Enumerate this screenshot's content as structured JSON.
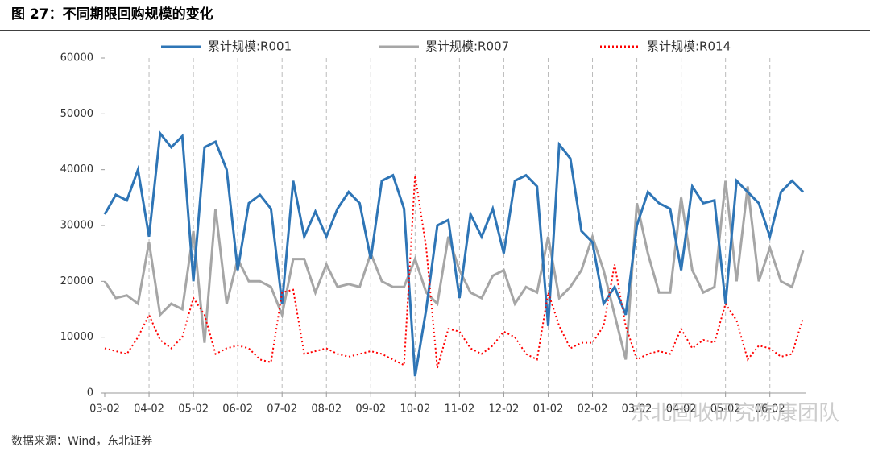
{
  "title": "图 27：不同期限回购规模的变化",
  "source": "数据来源：Wind，东北证券",
  "watermark": "东北固收研究陈康团队",
  "chart_data": {
    "type": "line",
    "categories": [
      "03-02",
      null,
      null,
      null,
      "04-02",
      null,
      null,
      null,
      "05-02",
      null,
      null,
      null,
      "06-02",
      null,
      null,
      null,
      "07-02",
      null,
      null,
      null,
      "08-02",
      null,
      null,
      null,
      "09-02",
      null,
      null,
      null,
      "10-02",
      null,
      null,
      null,
      "11-02",
      null,
      null,
      null,
      "12-02",
      null,
      null,
      null,
      "01-02",
      null,
      null,
      null,
      "02-02",
      null,
      null,
      null,
      "03-02",
      null,
      null,
      null,
      "04-02",
      null,
      null,
      null,
      "05-02",
      null,
      null,
      null,
      "06-02",
      null,
      null,
      null
    ],
    "series": [
      {
        "name": "累计规模:R001",
        "color": "#2e75b6",
        "style": "solid",
        "values": [
          32000,
          35500,
          34500,
          40000,
          28000,
          46500,
          44000,
          46000,
          20000,
          44000,
          45000,
          40000,
          22000,
          34000,
          35500,
          33000,
          16000,
          38000,
          28000,
          32500,
          28000,
          33000,
          36000,
          34000,
          24000,
          38000,
          39000,
          33000,
          3000,
          15000,
          30000,
          31000,
          17000,
          32000,
          28000,
          33000,
          25000,
          38000,
          39000,
          37000,
          12000,
          44500,
          42000,
          29000,
          27000,
          16000,
          19000,
          14000,
          30000,
          36000,
          34000,
          33000,
          22000,
          37000,
          34000,
          34500,
          16000,
          38000,
          36000,
          34000,
          28000,
          36000,
          38000,
          36000
        ]
      },
      {
        "name": "累计规模:R007",
        "color": "#a6a6a6",
        "style": "solid",
        "values": [
          20000,
          17000,
          17500,
          16000,
          27000,
          14000,
          16000,
          15000,
          29000,
          9000,
          33000,
          16000,
          24000,
          20000,
          20000,
          19000,
          14000,
          24000,
          24000,
          18000,
          23000,
          19000,
          19500,
          19000,
          25000,
          20000,
          19000,
          19000,
          24000,
          18000,
          16000,
          28000,
          22000,
          18000,
          17000,
          21000,
          22000,
          16000,
          19000,
          18000,
          28000,
          17000,
          19000,
          22000,
          28000,
          22000,
          14000,
          6000,
          34000,
          25000,
          18000,
          18000,
          35000,
          22000,
          18000,
          19000,
          38000,
          20000,
          37000,
          20000,
          26000,
          20000,
          19000,
          25500
        ]
      },
      {
        "name": "累计规模:R014",
        "color": "#ff0000",
        "style": "dotted",
        "values": [
          8000,
          7500,
          7000,
          10000,
          14000,
          9500,
          8000,
          10000,
          17000,
          14000,
          7000,
          8000,
          8500,
          8000,
          6000,
          5500,
          18000,
          18500,
          7000,
          7500,
          8000,
          7000,
          6500,
          7000,
          7500,
          7000,
          6000,
          5000,
          39000,
          26000,
          4500,
          11500,
          11000,
          8000,
          7000,
          8500,
          11000,
          10000,
          7000,
          6000,
          18000,
          12000,
          8000,
          9000,
          9000,
          12000,
          23000,
          12000,
          6000,
          7000,
          7500,
          7000,
          11500,
          8000,
          9500,
          9000,
          16000,
          13000,
          6000,
          8500,
          8000,
          6500,
          7000,
          13500
        ]
      }
    ],
    "ylim": [
      0,
      60000
    ],
    "yticks": [
      0,
      10000,
      20000,
      30000,
      40000,
      50000,
      60000
    ],
    "grid": "x",
    "legend": "top"
  }
}
